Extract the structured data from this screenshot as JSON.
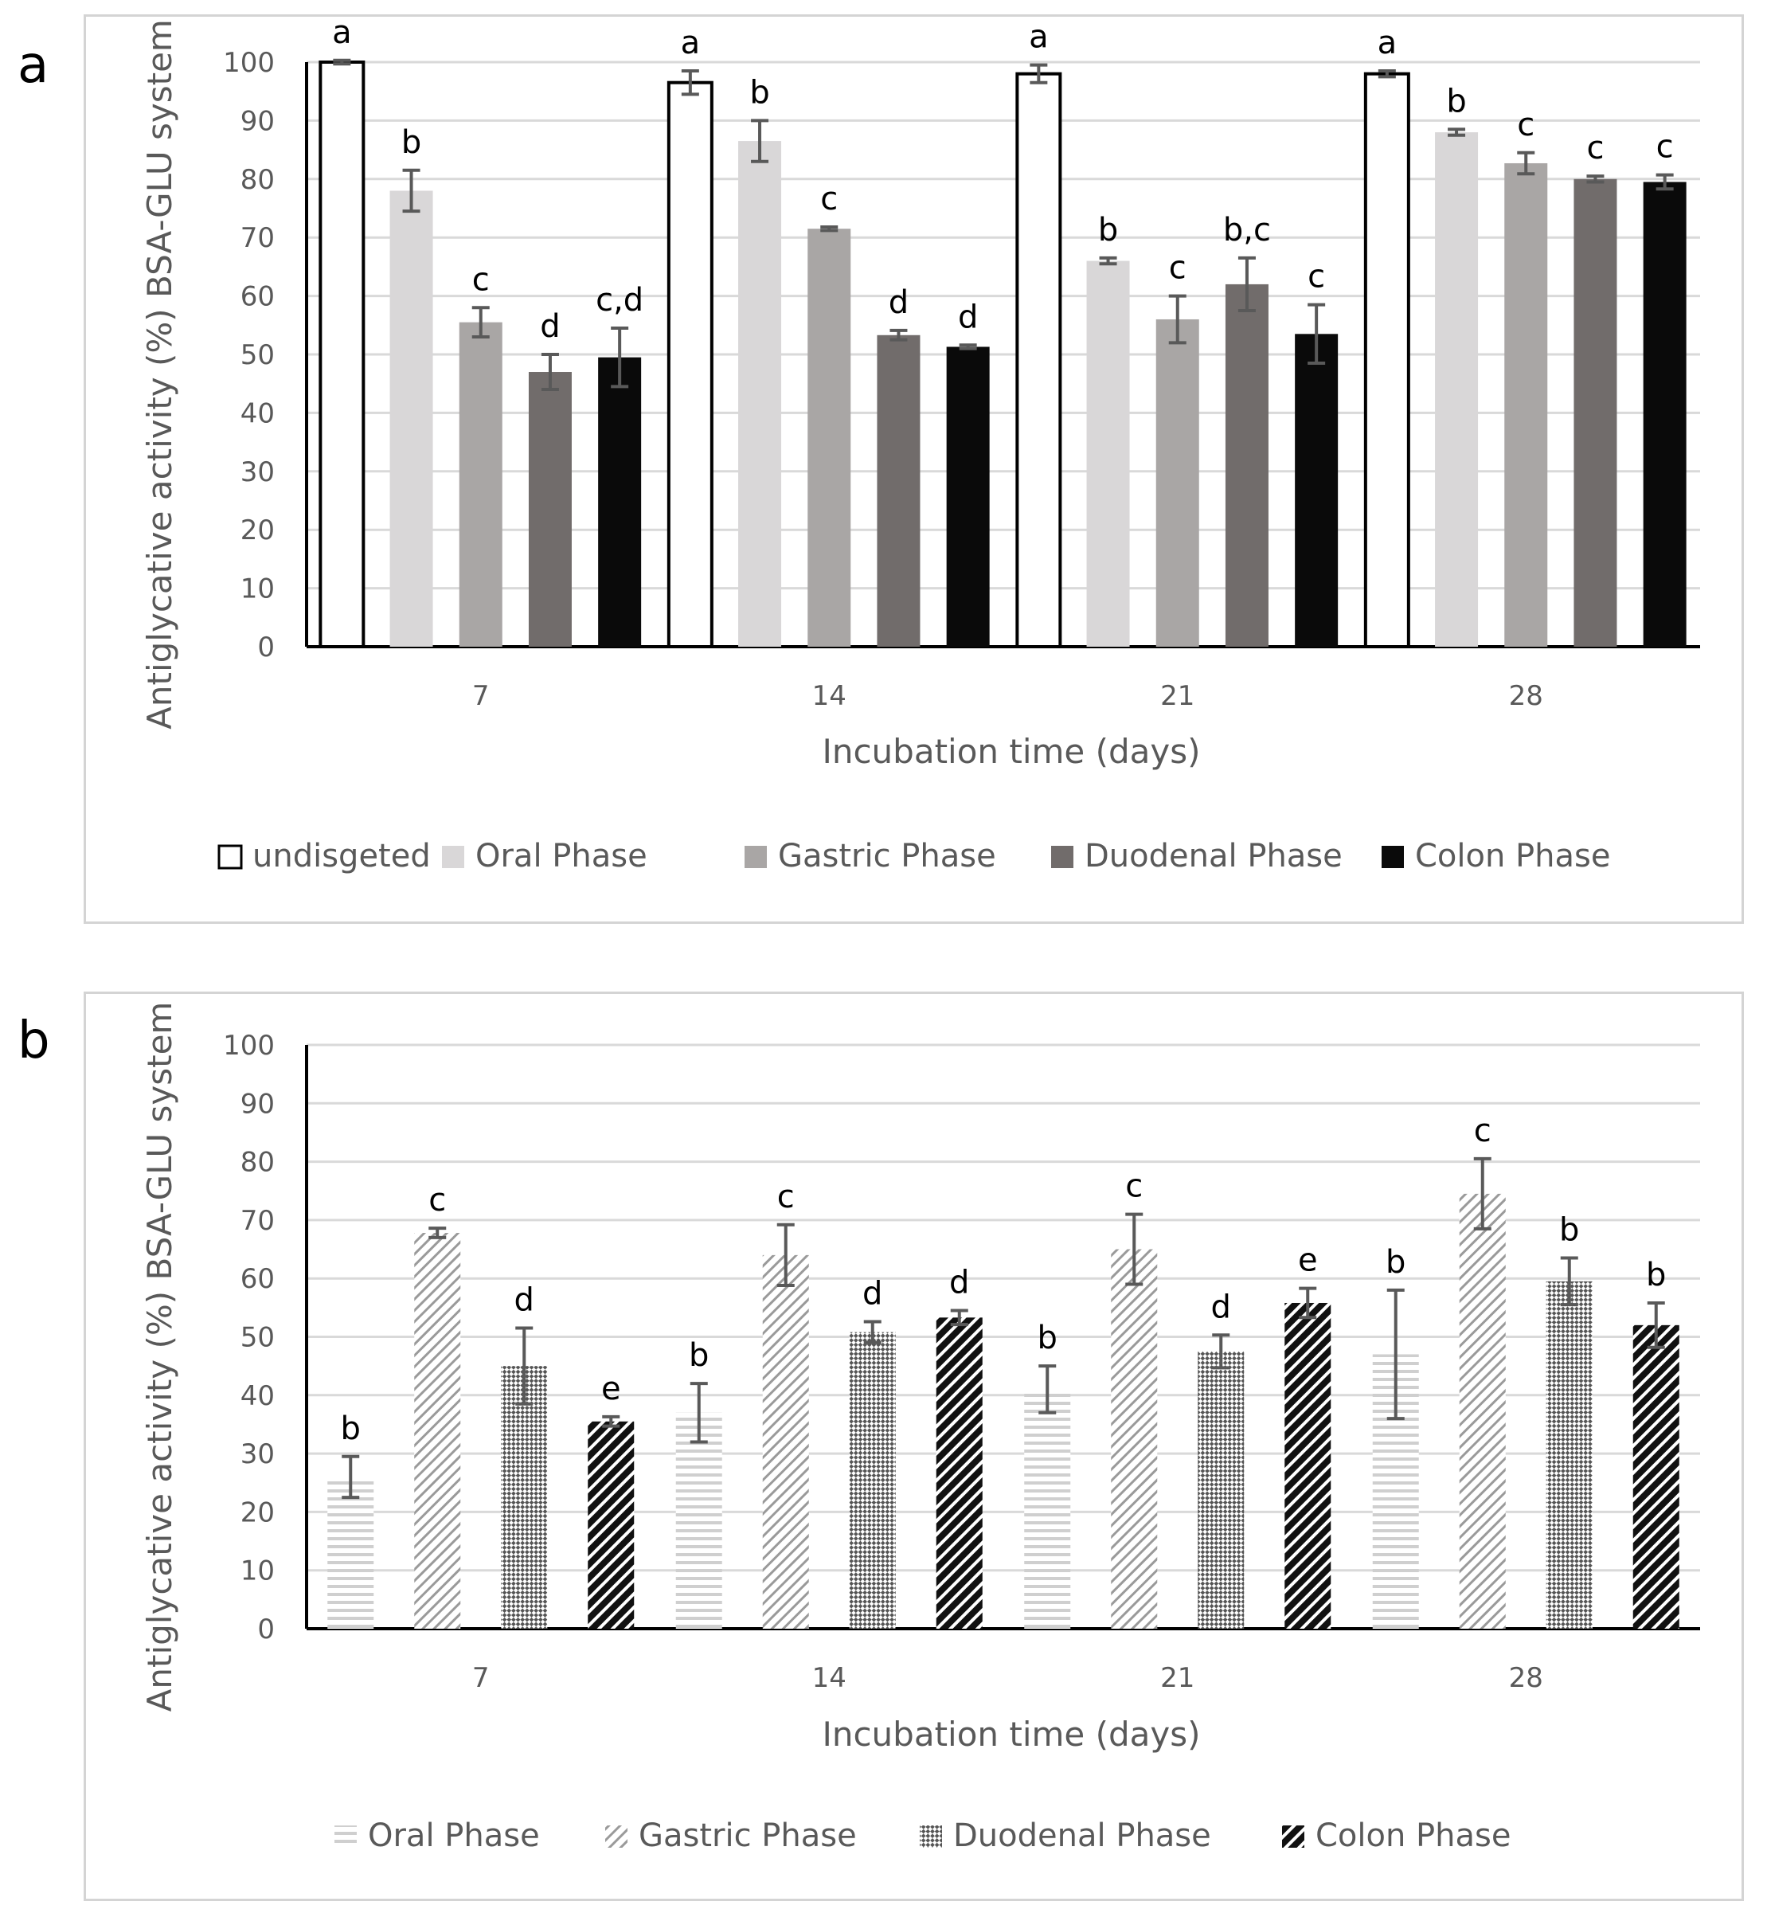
{
  "panels": {
    "a": {
      "letter": "a"
    },
    "b": {
      "letter": "b"
    }
  },
  "chart_data": [
    {
      "panel": "a",
      "type": "bar",
      "title": "",
      "xlabel": "Incubation time (days)",
      "ylabel": "Antiglycative activity (%) BSA-GLU system",
      "ylim": [
        0,
        100
      ],
      "yticks": [
        0,
        10,
        20,
        30,
        40,
        50,
        60,
        70,
        80,
        90,
        100
      ],
      "grid": true,
      "legend_position": "bottom",
      "categories": [
        "7",
        "14",
        "21",
        "28"
      ],
      "series": [
        {
          "name": "undisgeted",
          "fill": "#ffffff",
          "stroke": "#000000",
          "pattern": "solid",
          "values": [
            100,
            96.5,
            98,
            98
          ],
          "errors": [
            0.3,
            2,
            1.5,
            0.5
          ],
          "labels": [
            "a",
            "a",
            "a",
            "a"
          ]
        },
        {
          "name": "Oral Phase",
          "fill": "#d9d7d8",
          "stroke": "none",
          "pattern": "solid",
          "values": [
            78,
            86.5,
            66,
            88
          ],
          "errors": [
            3.5,
            3.5,
            0.5,
            0.5
          ],
          "labels": [
            "b",
            "b",
            "b",
            "b"
          ]
        },
        {
          "name": "Gastric Phase",
          "fill": "#a9a6a5",
          "stroke": "none",
          "pattern": "solid",
          "values": [
            55.5,
            71.5,
            56,
            82.7
          ],
          "errors": [
            2.5,
            0.3,
            4,
            1.8
          ],
          "labels": [
            "c",
            "c",
            "c",
            "c"
          ]
        },
        {
          "name": "Duodenal Phase",
          "fill": "#716c6b",
          "stroke": "none",
          "pattern": "solid",
          "values": [
            47,
            53.3,
            62,
            80
          ],
          "errors": [
            3,
            0.8,
            4.5,
            0.5
          ],
          "labels": [
            "d",
            "d",
            "b,c",
            "c"
          ]
        },
        {
          "name": "Colon Phase",
          "fill": "#0a0a0a",
          "stroke": "none",
          "pattern": "solid",
          "values": [
            49.5,
            51.3,
            53.5,
            79.5
          ],
          "errors": [
            5,
            0.3,
            5,
            1.2
          ],
          "labels": [
            "c,d",
            "d",
            "c",
            "c"
          ]
        }
      ]
    },
    {
      "panel": "b",
      "type": "bar",
      "title": "",
      "xlabel": "Incubation time (days)",
      "ylabel": "Antiglycative activity (%) BSA-GLU system",
      "ylim": [
        0,
        100
      ],
      "yticks": [
        0,
        10,
        20,
        30,
        40,
        50,
        60,
        70,
        80,
        90,
        100
      ],
      "grid": true,
      "legend_position": "bottom",
      "categories": [
        "7",
        "14",
        "21",
        "28"
      ],
      "series": [
        {
          "name": "Oral Phase",
          "fill": "#d2d2d2",
          "stroke": "none",
          "pattern": "horizontal",
          "values": [
            26,
            37,
            41,
            47
          ],
          "errors": [
            3.5,
            5,
            4,
            11
          ],
          "labels": [
            "b",
            "b",
            "b",
            "b"
          ]
        },
        {
          "name": "Gastric Phase",
          "fill": "#9a9a9a",
          "stroke": "none",
          "pattern": "diagonal",
          "values": [
            67.8,
            64,
            65,
            74.5
          ],
          "errors": [
            0.8,
            5.2,
            6,
            6
          ],
          "labels": [
            "c",
            "c",
            "c",
            "c"
          ]
        },
        {
          "name": "Duodenal Phase",
          "fill": "#555555",
          "stroke": "none",
          "pattern": "checker",
          "values": [
            45,
            50.8,
            47.5,
            59.5
          ],
          "errors": [
            6.5,
            1.8,
            2.8,
            4
          ],
          "labels": [
            "d",
            "d",
            "d",
            "b"
          ]
        },
        {
          "name": "Colon Phase",
          "fill": "#111111",
          "stroke": "none",
          "pattern": "wide-diagonal",
          "values": [
            35.5,
            53.3,
            55.8,
            52
          ],
          "errors": [
            0.8,
            1.2,
            2.5,
            3.8
          ],
          "labels": [
            "e",
            "d",
            "e",
            "b"
          ]
        }
      ]
    }
  ]
}
